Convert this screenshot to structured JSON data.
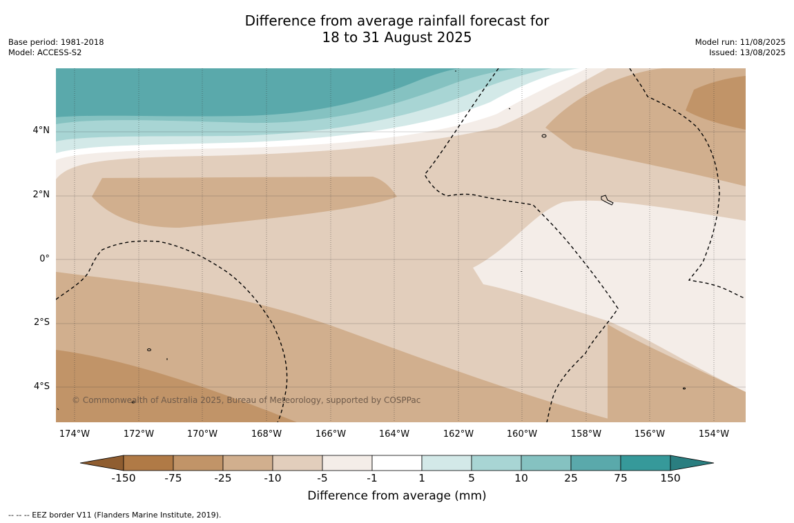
{
  "title_line1": "Difference from average rainfall forecast for",
  "title_line2": "18 to 31 August 2025",
  "meta_left": {
    "base_period": "Base period: 1981-2018",
    "model": "Model: ACCESS-S2"
  },
  "meta_right": {
    "model_run": "Model run: 11/08/2025",
    "issued": "Issued: 13/08/2025"
  },
  "lat_labels": [
    "4°N",
    "2°N",
    "0°",
    "2°S",
    "4°S"
  ],
  "lon_labels": [
    "174°W",
    "172°W",
    "170°W",
    "168°W",
    "166°W",
    "164°W",
    "162°W",
    "160°W",
    "158°W",
    "156°W",
    "154°W"
  ],
  "copyright": "© Commonwealth of Australia 2025, Bureau of Meteorology, supported by COSPPac",
  "colorbar": {
    "ticks": [
      "-150",
      "-75",
      "-25",
      "-10",
      "-5",
      "-1",
      "1",
      "5",
      "10",
      "25",
      "75",
      "150"
    ],
    "colors": [
      "#b07a46",
      "#c19468",
      "#d1af8e",
      "#e2cebc",
      "#f4ede8",
      "#ffffff",
      "#d3e9e8",
      "#a8d5d4",
      "#85c2c1",
      "#5aa9ab",
      "#36999a"
    ],
    "under_color": "#8f5d30",
    "over_color": "#2a7e80",
    "label": "Difference from average (mm)"
  },
  "footnote": "--  --  -- EEZ border V11 (Flanders Marine Institute, 2019)."
}
